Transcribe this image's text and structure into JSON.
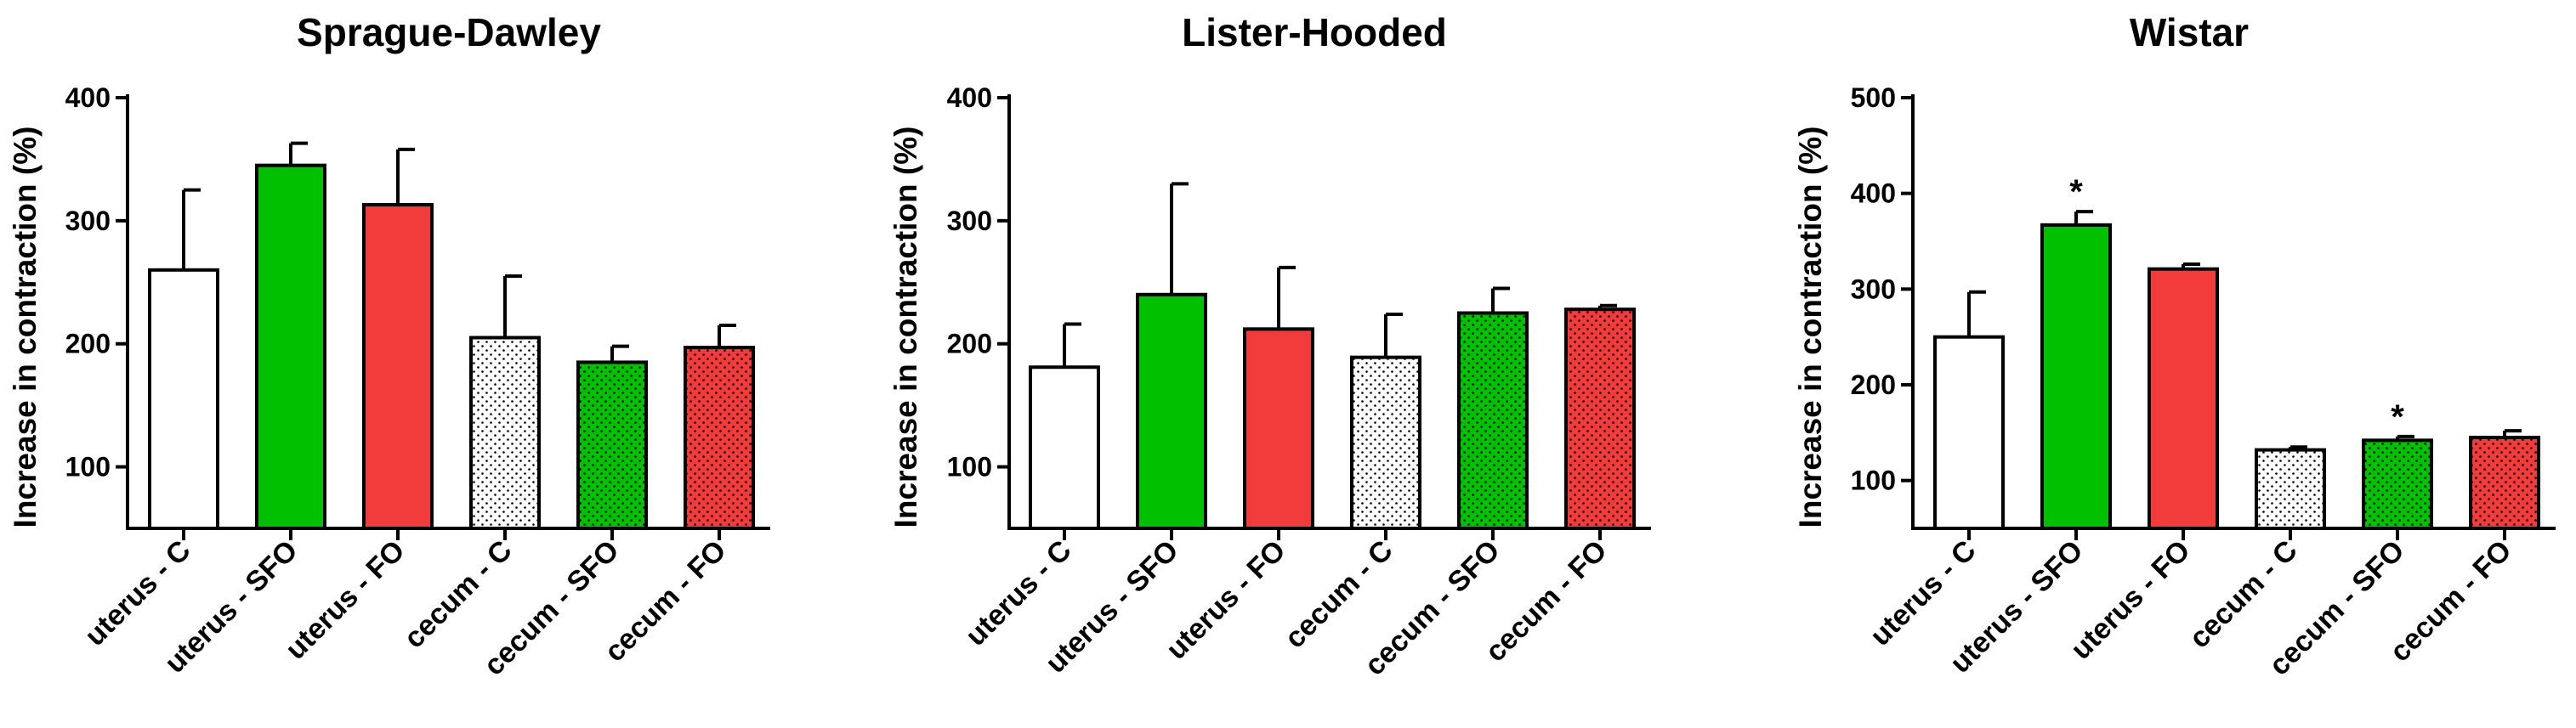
{
  "chart_data": [
    {
      "type": "bar",
      "title": "Sprague-Dawley",
      "ylabel": "Increase in contraction (%)",
      "categories": [
        "uterus - C",
        "uterus - SFO",
        "uterus - FO",
        "cecum - C",
        "cecum - SFO",
        "cecum - FO"
      ],
      "values": [
        260,
        345,
        313,
        205,
        185,
        197
      ],
      "errors": [
        65,
        18,
        45,
        50,
        13,
        18
      ],
      "fills": [
        "white",
        "green",
        "red",
        "white",
        "green",
        "red"
      ],
      "patterns": [
        false,
        false,
        false,
        true,
        true,
        true
      ],
      "yticks": [
        "100",
        "200",
        "300",
        "400"
      ],
      "ylim": [
        50,
        400
      ],
      "significance": [
        "",
        "",
        "",
        "",
        "",
        ""
      ]
    },
    {
      "type": "bar",
      "title": "Lister-Hooded",
      "ylabel": "Increase in contraction (%)",
      "categories": [
        "uterus - C",
        "uterus - SFO",
        "uterus - FO",
        "cecum - C",
        "cecum - SFO",
        "cecum - FO"
      ],
      "values": [
        181,
        240,
        212,
        189,
        225,
        228
      ],
      "errors": [
        35,
        90,
        50,
        35,
        20,
        3
      ],
      "fills": [
        "white",
        "green",
        "red",
        "white",
        "green",
        "red"
      ],
      "patterns": [
        false,
        false,
        false,
        true,
        true,
        true
      ],
      "yticks": [
        "100",
        "200",
        "300",
        "400"
      ],
      "ylim": [
        50,
        400
      ],
      "significance": [
        "",
        "",
        "",
        "",
        "",
        ""
      ]
    },
    {
      "type": "bar",
      "title": "Wistar",
      "ylabel": "Increase in contraction (%)",
      "categories": [
        "uterus - C",
        "uterus - SFO",
        "uterus - FO",
        "cecum - C",
        "cecum - SFO",
        "cecum - FO"
      ],
      "values": [
        250,
        367,
        321,
        132,
        142,
        145
      ],
      "errors": [
        47,
        14,
        5,
        3,
        4,
        7
      ],
      "fills": [
        "white",
        "green",
        "red",
        "white",
        "green",
        "red"
      ],
      "patterns": [
        false,
        false,
        false,
        true,
        true,
        true
      ],
      "yticks": [
        "100",
        "200",
        "300",
        "400",
        "500"
      ],
      "ylim": [
        50,
        500
      ],
      "significance": [
        "",
        "*",
        "",
        "",
        "*",
        ""
      ]
    }
  ],
  "colors": {
    "white": "#ffffff",
    "green": "#00c000",
    "red": "#f23b3b",
    "axis": "#000000",
    "stipple": "#000000"
  }
}
